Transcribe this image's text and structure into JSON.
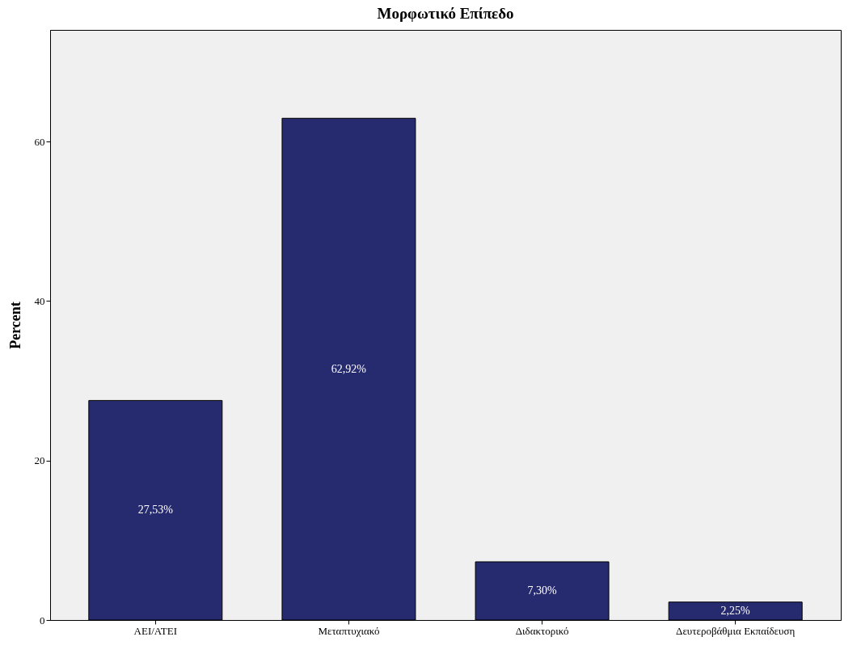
{
  "chart_data": {
    "type": "bar",
    "title": "Μορφωτικό Επίπεδο",
    "ylabel": "Percent",
    "categories": [
      "ΑΕΙ/ΑΤΕΙ",
      "Μεταπτυχιακό",
      "Διδακτορικό",
      "Δευτεροβάθμια Εκπαίδευση"
    ],
    "values": [
      27.53,
      62.92,
      7.3,
      2.25
    ],
    "value_labels": [
      "27,53%",
      "62,92%",
      "7,30%",
      "2,25%"
    ],
    "color": "#262a6e",
    "ylim": [
      0,
      74
    ],
    "yticks": [
      0,
      20,
      40,
      60
    ],
    "grid": false
  }
}
